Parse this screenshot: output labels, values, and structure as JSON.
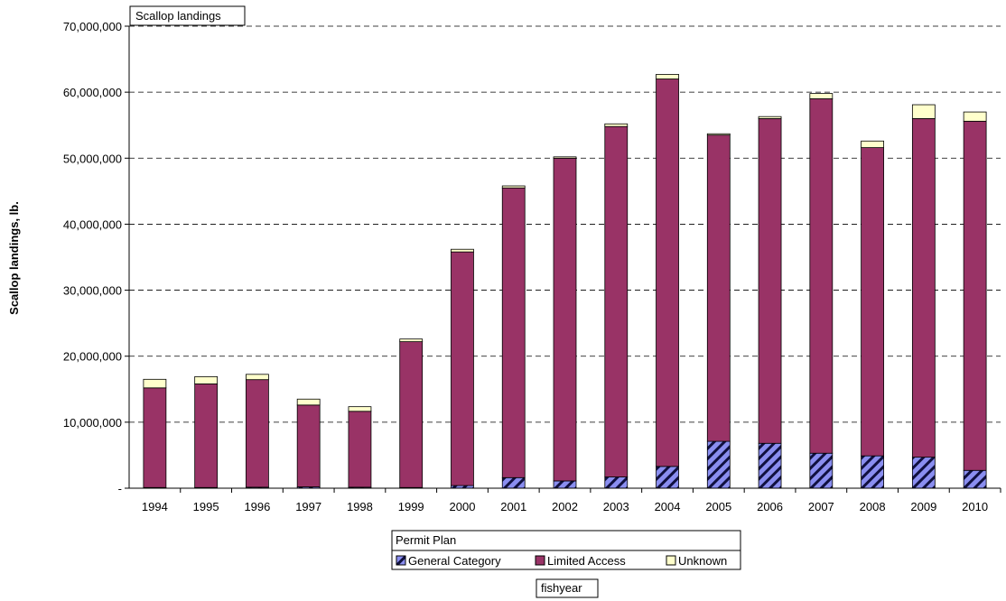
{
  "chart_data": {
    "type": "bar",
    "stacked": true,
    "title": "Scallop landings",
    "xlabel": "fishyear",
    "ylabel": "Scallop landings, lb.",
    "ylim": [
      0,
      70000000
    ],
    "yticks": [
      0,
      10000000,
      20000000,
      30000000,
      40000000,
      50000000,
      60000000,
      70000000
    ],
    "ytick_labels": [
      "-",
      "10,000,000",
      "20,000,000",
      "30,000,000",
      "40,000,000",
      "50,000,000",
      "60,000,000",
      "70,000,000"
    ],
    "grid": true,
    "legend": {
      "title": "Permit Plan",
      "position": "bottom"
    },
    "categories": [
      "1994",
      "1995",
      "1996",
      "1997",
      "1998",
      "1999",
      "2000",
      "2001",
      "2002",
      "2003",
      "2004",
      "2005",
      "2006",
      "2007",
      "2008",
      "2009",
      "2010"
    ],
    "series": [
      {
        "name": "General Category",
        "color": "#7b7fe0",
        "pattern": "diagonal-hatch",
        "values": [
          100000,
          100000,
          150000,
          200000,
          150000,
          100000,
          400000,
          1600000,
          1100000,
          1700000,
          3300000,
          7100000,
          6800000,
          5300000,
          4900000,
          4700000,
          2700000
        ]
      },
      {
        "name": "Limited Access",
        "color": "#993366",
        "values": [
          15100000,
          15700000,
          16300000,
          12400000,
          11500000,
          22100000,
          35400000,
          43900000,
          48900000,
          53100000,
          58700000,
          46400000,
          49200000,
          53700000,
          46700000,
          51300000,
          52900000
        ]
      },
      {
        "name": "Unknown",
        "color": "#ffffcc",
        "values": [
          1300000,
          1100000,
          800000,
          900000,
          700000,
          400000,
          400000,
          300000,
          200000,
          400000,
          700000,
          200000,
          300000,
          800000,
          1000000,
          2100000,
          1400000
        ]
      }
    ]
  }
}
